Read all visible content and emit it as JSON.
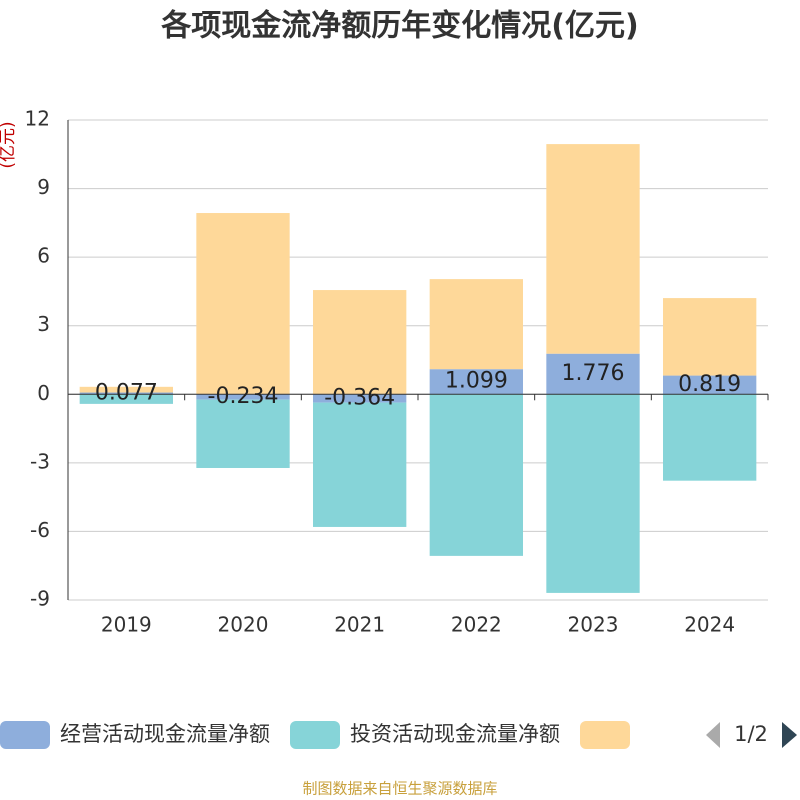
{
  "chart_data": {
    "type": "bar",
    "stacked": true,
    "title": "各项现金流净额历年变化情况(亿元)",
    "y_label": "(亿元)",
    "categories": [
      "2019",
      "2020",
      "2021",
      "2022",
      "2023",
      "2024"
    ],
    "series": [
      {
        "name": "经营活动现金流量净额",
        "color": "#8eaedc",
        "values": [
          0.077,
          -0.234,
          -0.364,
          1.099,
          1.776,
          0.819
        ],
        "show_labels": true
      },
      {
        "name": "投资活动现金流量净额",
        "color": "#86d4d8",
        "values": [
          -0.42,
          -2.99,
          -5.44,
          -7.07,
          -8.69,
          -3.78
        ]
      },
      {
        "color": "#fed899",
        "values": [
          0.25,
          7.93,
          4.56,
          3.94,
          9.17,
          3.39
        ]
      }
    ],
    "ylim": [
      -9,
      12
    ],
    "yticks": [
      -9,
      -6,
      -3,
      0,
      3,
      6,
      9,
      12
    ],
    "grid": true,
    "legend_page": "1/2",
    "source": "制图数据来自恒生聚源数据库"
  }
}
